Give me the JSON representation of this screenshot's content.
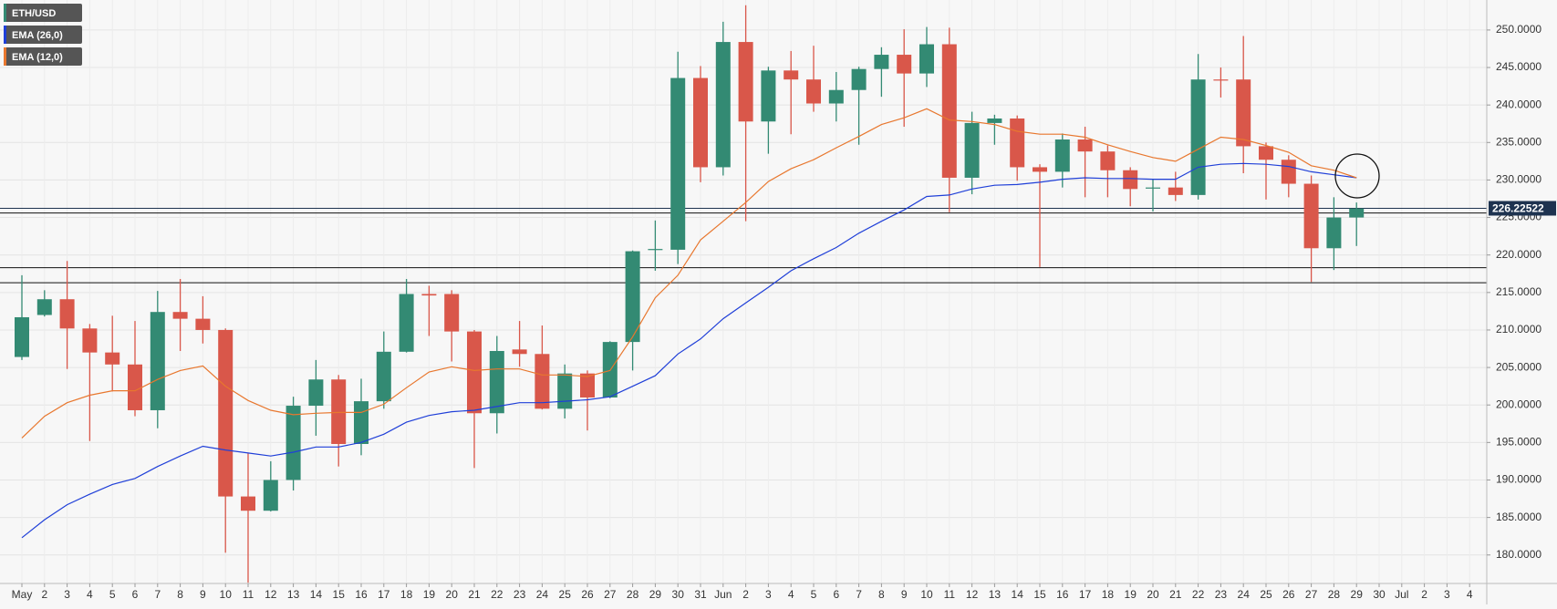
{
  "chart_data": {
    "type": "candlestick",
    "categories": [
      "May",
      "2",
      "3",
      "4",
      "5",
      "6",
      "7",
      "8",
      "9",
      "10",
      "11",
      "12",
      "13",
      "14",
      "15",
      "16",
      "17",
      "18",
      "19",
      "20",
      "21",
      "22",
      "23",
      "24",
      "25",
      "26",
      "27",
      "28",
      "29",
      "30",
      "31",
      "Jun",
      "2",
      "3",
      "4",
      "5",
      "6",
      "7",
      "8",
      "9",
      "10",
      "11",
      "12",
      "13",
      "14",
      "15",
      "16",
      "17",
      "18",
      "19",
      "20",
      "21",
      "22",
      "23",
      "24",
      "25",
      "26",
      "27",
      "28",
      "29",
      "30",
      "Jul",
      "2",
      "3",
      "4"
    ],
    "series": [
      {
        "name": "ETH/USD",
        "type": "candlestick",
        "up_color": "#338a73",
        "down_color": "#d9574a",
        "open": [
          206.4,
          212.0,
          214.1,
          210.2,
          207.0,
          205.4,
          199.3,
          212.4,
          211.5,
          210.0,
          187.8,
          185.9,
          190.0,
          199.9,
          203.4,
          194.8,
          200.5,
          207.1,
          214.8,
          214.8,
          209.8,
          198.9,
          207.4,
          206.8,
          199.5,
          204.2,
          201.0,
          208.4,
          220.7,
          220.7,
          243.6,
          231.7,
          248.4,
          237.8,
          244.6,
          243.4,
          240.2,
          242.0,
          244.8,
          246.7,
          244.2,
          248.1,
          230.3,
          237.6,
          238.2,
          231.7,
          231.1,
          235.4,
          233.8,
          231.3,
          228.9,
          229.0,
          228.0,
          243.4,
          243.4,
          234.5,
          232.7,
          229.5,
          220.9,
          225.0,
          null,
          null,
          null,
          null,
          null
        ],
        "high": [
          217.3,
          215.3,
          219.2,
          210.8,
          211.9,
          211.2,
          215.2,
          216.8,
          214.5,
          210.2,
          193.6,
          192.5,
          201.1,
          206.0,
          204.0,
          203.5,
          209.8,
          216.8,
          215.9,
          215.3,
          210.0,
          209.2,
          211.2,
          210.6,
          205.4,
          204.6,
          208.5,
          220.6,
          224.6,
          247.1,
          245.2,
          251.1,
          253.3,
          245.1,
          247.2,
          247.9,
          244.4,
          245.1,
          247.7,
          250.1,
          250.4,
          250.3,
          239.1,
          238.7,
          238.6,
          232.1,
          236.2,
          237.1,
          234.6,
          231.7,
          230.1,
          231.1,
          246.8,
          245.0,
          249.2,
          235.0,
          233.3,
          230.6,
          227.7,
          227.0,
          null,
          null,
          null,
          null,
          null
        ],
        "low": [
          206.0,
          211.8,
          204.8,
          195.2,
          201.8,
          198.5,
          196.9,
          207.2,
          208.2,
          180.3,
          176.3,
          185.8,
          188.6,
          195.9,
          191.8,
          193.3,
          199.5,
          207.0,
          209.2,
          205.8,
          191.6,
          196.2,
          205.1,
          199.4,
          198.2,
          196.6,
          200.9,
          204.6,
          217.9,
          218.8,
          229.7,
          230.6,
          224.5,
          233.5,
          236.1,
          239.1,
          237.8,
          234.7,
          241.1,
          237.1,
          242.4,
          225.7,
          228.1,
          234.7,
          229.9,
          218.4,
          229.0,
          227.7,
          227.7,
          226.5,
          225.8,
          227.2,
          227.4,
          241.0,
          230.9,
          227.4,
          227.7,
          216.4,
          218.0,
          221.2,
          null,
          null,
          null,
          null,
          null
        ],
        "close": [
          211.7,
          214.1,
          210.2,
          207.0,
          205.4,
          199.3,
          212.4,
          211.5,
          210.0,
          187.8,
          185.9,
          190.0,
          199.9,
          203.4,
          194.8,
          200.5,
          207.1,
          214.8,
          214.6,
          209.8,
          198.9,
          207.2,
          206.8,
          199.5,
          204.2,
          201.0,
          208.4,
          220.5,
          220.8,
          243.6,
          231.7,
          248.4,
          237.8,
          244.6,
          243.4,
          240.2,
          242.0,
          244.8,
          246.7,
          244.2,
          248.1,
          230.3,
          237.6,
          238.2,
          231.7,
          231.1,
          235.4,
          233.8,
          231.3,
          228.8,
          229.0,
          228.0,
          243.4,
          243.3,
          234.5,
          232.7,
          229.5,
          220.9,
          225.0,
          226.2,
          null,
          null,
          null,
          null,
          null
        ]
      },
      {
        "name": "EMA (26,0)",
        "type": "line",
        "color": "#1f3fd8",
        "values": [
          182.3,
          184.7,
          186.7,
          188.1,
          189.4,
          190.2,
          191.8,
          193.2,
          194.5,
          194.0,
          193.6,
          193.2,
          193.7,
          194.4,
          194.4,
          195.0,
          196.1,
          197.7,
          198.6,
          199.1,
          199.3,
          199.8,
          200.3,
          200.3,
          200.5,
          200.7,
          201.1,
          202.5,
          203.9,
          206.8,
          208.8,
          211.5,
          213.6,
          215.7,
          217.9,
          219.5,
          221.0,
          222.9,
          224.5,
          226.0,
          227.8,
          228.0,
          228.8,
          229.3,
          229.4,
          229.7,
          230.1,
          230.3,
          230.2,
          230.2,
          230.1,
          230.1,
          231.7,
          232.1,
          232.2,
          232.1,
          231.8,
          231.1,
          230.7,
          230.3,
          null,
          null,
          null,
          null,
          null
        ]
      },
      {
        "name": "EMA (12,0)",
        "type": "line",
        "color": "#e8772e",
        "values": [
          195.6,
          198.5,
          200.3,
          201.3,
          201.9,
          201.9,
          203.4,
          204.6,
          205.2,
          202.5,
          200.6,
          199.3,
          198.7,
          198.9,
          199.0,
          199.0,
          200.1,
          202.3,
          204.4,
          205.1,
          204.6,
          204.8,
          204.8,
          204.0,
          204.0,
          203.8,
          204.6,
          209.1,
          214.3,
          217.3,
          222.0,
          224.5,
          227.0,
          229.8,
          231.5,
          232.7,
          234.3,
          235.8,
          237.4,
          238.3,
          239.5,
          238.0,
          237.8,
          237.4,
          236.5,
          236.1,
          236.1,
          235.7,
          234.7,
          233.8,
          233.0,
          232.5,
          234.1,
          235.7,
          235.4,
          234.6,
          233.7,
          231.9,
          231.3,
          230.3,
          null,
          null,
          null,
          null,
          null
        ]
      }
    ],
    "ylim": [
      176.2,
      254.0
    ],
    "yticks": [
      {
        "value": 180,
        "label": "180.0000"
      },
      {
        "value": 185,
        "label": "185.0000"
      },
      {
        "value": 190,
        "label": "190.0000"
      },
      {
        "value": 195,
        "label": "195.0000"
      },
      {
        "value": 200,
        "label": "200.0000"
      },
      {
        "value": 205,
        "label": "205.0000"
      },
      {
        "value": 210,
        "label": "210.0000"
      },
      {
        "value": 215,
        "label": "215.0000"
      },
      {
        "value": 220,
        "label": "220.0000"
      },
      {
        "value": 225,
        "label": "225.0000"
      },
      {
        "value": 230,
        "label": "230.0000"
      },
      {
        "value": 235,
        "label": "235.0000"
      },
      {
        "value": 240,
        "label": "240.0000"
      },
      {
        "value": 245,
        "label": "245.0000"
      },
      {
        "value": 250,
        "label": "250.0000"
      }
    ],
    "price_line": 226.22522,
    "price_line_color": "#1e3350",
    "levels": [
      225.6,
      218.3,
      216.3
    ],
    "grid": true
  }
}
